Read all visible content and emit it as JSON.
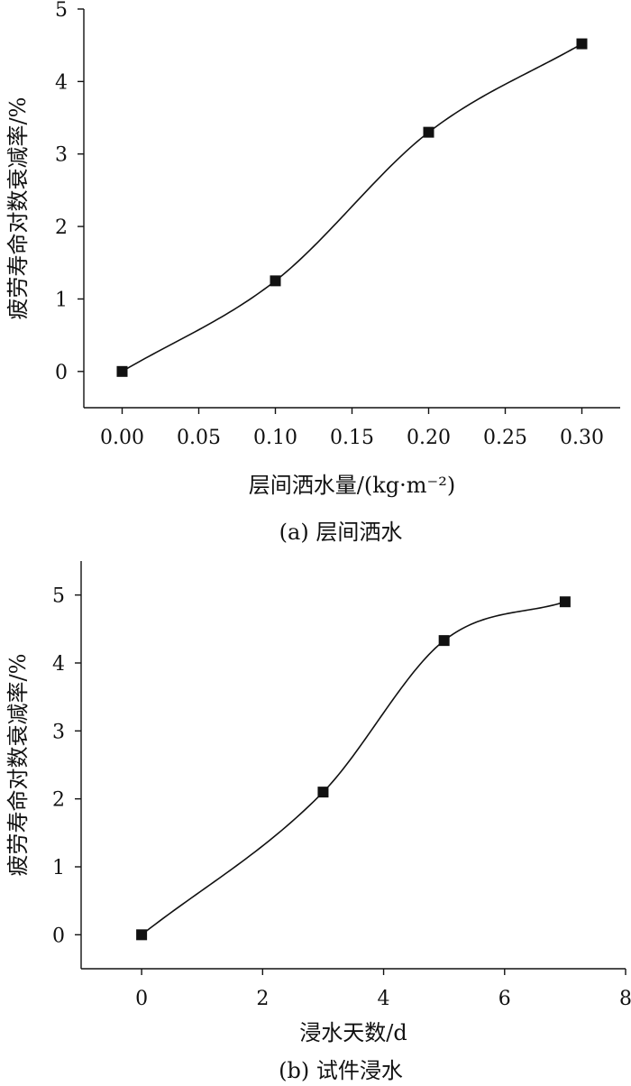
{
  "chart_data": [
    {
      "type": "scatter",
      "caption": "(a) 层间洒水",
      "xlabel": "层间洒水量/(kg·m⁻²)",
      "ylabel": "疲劳寿命对数衰减率/%",
      "xlim": [
        -0.025,
        0.325
      ],
      "ylim": [
        -0.5,
        5
      ],
      "xticks": [
        0.0,
        0.05,
        0.1,
        0.15,
        0.2,
        0.25,
        0.3
      ],
      "xtick_labels": [
        "0.00",
        "0.05",
        "0.10",
        "0.15",
        "0.20",
        "0.25",
        "0.30"
      ],
      "yticks": [
        0,
        1,
        2,
        3,
        4,
        5
      ],
      "ytick_labels": [
        "0",
        "1",
        "2",
        "3",
        "4",
        "5"
      ],
      "x": [
        0.0,
        0.1,
        0.2,
        0.3
      ],
      "y": [
        0.0,
        1.25,
        3.3,
        4.52
      ],
      "grid": false,
      "marker_color": "#111111",
      "curve_color": "#111111"
    },
    {
      "type": "scatter",
      "caption": "(b) 试件浸水",
      "xlabel": "浸水天数/d",
      "ylabel": "疲劳寿命对数衰减率/%",
      "xlim": [
        -1,
        8
      ],
      "ylim": [
        -0.5,
        5.5
      ],
      "xticks": [
        0,
        2,
        4,
        6,
        8
      ],
      "xtick_labels": [
        "0",
        "2",
        "4",
        "6",
        "8"
      ],
      "yticks": [
        0,
        1,
        2,
        3,
        4,
        5
      ],
      "ytick_labels": [
        "0",
        "1",
        "2",
        "3",
        "4",
        "5"
      ],
      "x": [
        0,
        3,
        5,
        7
      ],
      "y": [
        0.0,
        2.1,
        4.33,
        4.9
      ],
      "grid": false,
      "marker_color": "#111111",
      "curve_color": "#111111"
    }
  ]
}
